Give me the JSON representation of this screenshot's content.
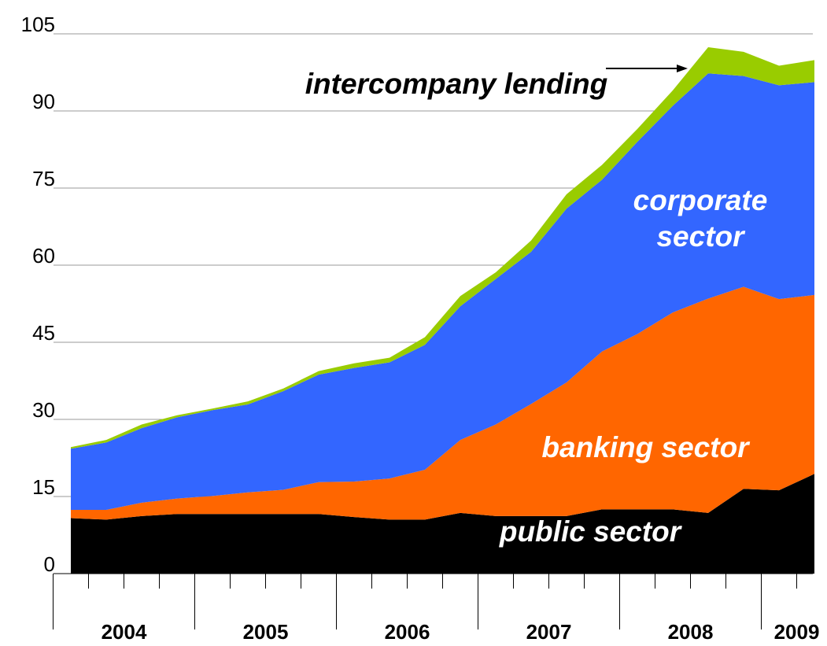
{
  "chart_data": {
    "type": "stacked_area",
    "categories": [
      null,
      null,
      null,
      null,
      null,
      null,
      null,
      null,
      null,
      null,
      null,
      null,
      null,
      null,
      null,
      null,
      null,
      null,
      null,
      null,
      null,
      null
    ],
    "x_groups": [
      "2004",
      "2005",
      "2006",
      "2007",
      "2008",
      "2009"
    ],
    "ylim": [
      0,
      105
    ],
    "yticks": [
      0,
      15,
      30,
      45,
      60,
      75,
      90,
      105
    ],
    "grid": true,
    "series": [
      {
        "name": "public sector",
        "color": "#000000",
        "label_color": "#ffffff",
        "values": [
          10.8,
          10.5,
          11.2,
          11.6,
          11.6,
          11.6,
          11.6,
          11.6,
          11.0,
          10.5,
          10.5,
          11.8,
          11.2,
          11.2,
          11.2,
          12.5,
          12.5,
          12.5,
          11.8,
          16.5,
          16.2,
          19.4
        ]
      },
      {
        "name": "banking sector",
        "color": "#ff6600",
        "label_color": "#ffffff",
        "values": [
          1.6,
          1.9,
          2.6,
          3.0,
          3.5,
          4.2,
          4.7,
          6.2,
          6.9,
          8.0,
          9.7,
          14.2,
          17.8,
          21.8,
          26.0,
          30.7,
          34.1,
          38.3,
          41.7,
          39.3,
          37.2,
          34.8
        ]
      },
      {
        "name": "corporate sector",
        "color": "#3366ff",
        "label_color": "#ffffff",
        "values": [
          11.9,
          13.1,
          14.5,
          15.8,
          16.7,
          17.1,
          19.2,
          20.9,
          22.1,
          22.6,
          24.3,
          26.0,
          28.3,
          29.6,
          33.8,
          33.4,
          37.4,
          40.2,
          43.8,
          41.0,
          41.6,
          41.4
        ]
      },
      {
        "name": "intercompany lending",
        "color": "#99cc00",
        "label_color": "#000000",
        "values": [
          0.3,
          0.5,
          0.7,
          0.4,
          0.3,
          0.6,
          0.5,
          0.7,
          0.9,
          0.9,
          1.5,
          2.0,
          1.3,
          2.2,
          2.8,
          2.9,
          2.5,
          3.0,
          5.1,
          4.7,
          3.8,
          4.3
        ]
      }
    ]
  }
}
